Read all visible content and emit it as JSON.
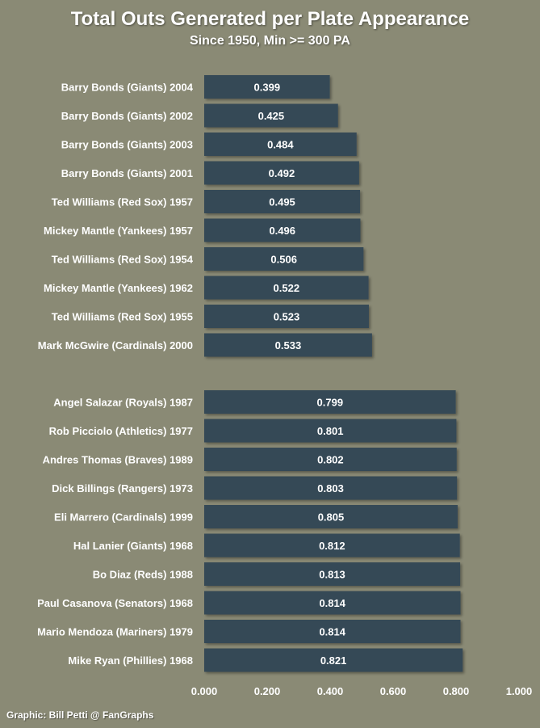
{
  "header": {
    "title": "Total Outs Generated per Plate Appearance",
    "subtitle": "Since 1950, Min >= 300 PA"
  },
  "footer": {
    "credit": "Graphic: Bill Petti @ FanGraphs"
  },
  "colors": {
    "background": "#8a8a75",
    "bar": "#344857",
    "text": "#ffffff"
  },
  "chart_data": {
    "type": "bar",
    "orientation": "horizontal",
    "title": "Total Outs Generated per Plate Appearance",
    "subtitle": "Since 1950, Min >= 300 PA",
    "xlabel": "",
    "ylabel": "",
    "xlim": [
      0,
      1
    ],
    "grid": false,
    "legend": "none",
    "x_ticks": [
      "0.000",
      "0.200",
      "0.400",
      "0.600",
      "0.800",
      "1.000"
    ],
    "groups": [
      {
        "categories": [
          "Barry Bonds (Giants) 2004",
          "Barry Bonds (Giants) 2002",
          "Barry Bonds (Giants) 2003",
          "Barry Bonds (Giants) 2001",
          "Ted Williams (Red Sox) 1957",
          "Mickey Mantle (Yankees) 1957",
          "Ted Williams (Red Sox) 1954",
          "Mickey Mantle (Yankees) 1962",
          "Ted Williams (Red Sox) 1955",
          "Mark McGwire (Cardinals) 2000"
        ],
        "values": [
          0.399,
          0.425,
          0.484,
          0.492,
          0.495,
          0.496,
          0.506,
          0.522,
          0.523,
          0.533
        ],
        "labels": [
          "0.399",
          "0.425",
          "0.484",
          "0.492",
          "0.495",
          "0.496",
          "0.506",
          "0.522",
          "0.523",
          "0.533"
        ]
      },
      {
        "categories": [
          "Angel Salazar (Royals) 1987",
          "Rob Picciolo (Athletics) 1977",
          "Andres Thomas (Braves) 1989",
          "Dick Billings (Rangers) 1973",
          "Eli Marrero (Cardinals) 1999",
          "Hal Lanier (Giants) 1968",
          "Bo Diaz (Reds) 1988",
          "Paul Casanova (Senators) 1968",
          "Mario Mendoza (Mariners) 1979",
          "Mike Ryan (Phillies) 1968"
        ],
        "values": [
          0.799,
          0.801,
          0.802,
          0.803,
          0.805,
          0.812,
          0.813,
          0.814,
          0.814,
          0.821
        ],
        "labels": [
          "0.799",
          "0.801",
          "0.802",
          "0.803",
          "0.805",
          "0.812",
          "0.813",
          "0.814",
          "0.814",
          "0.821"
        ]
      }
    ]
  }
}
